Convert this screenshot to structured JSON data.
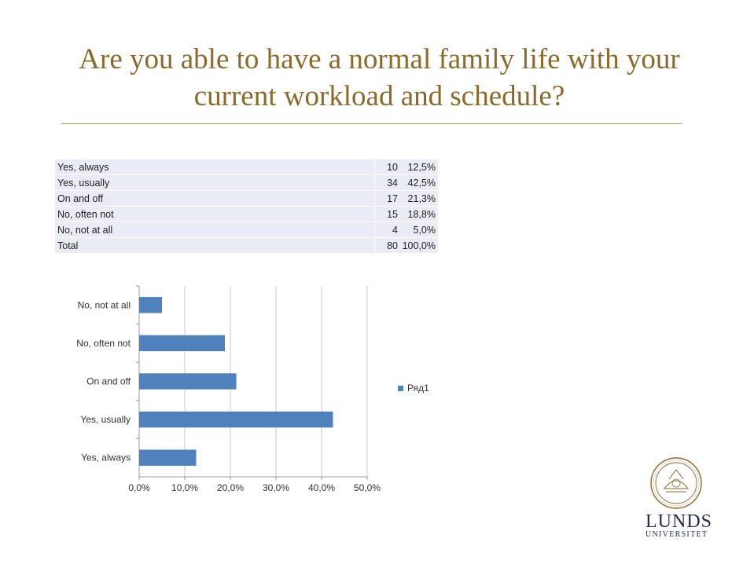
{
  "title": "Are you able to have a normal family life with your current workload and schedule?",
  "table": {
    "rows": [
      {
        "label": "Yes, always",
        "count": "10",
        "percent": "12,5%"
      },
      {
        "label": "Yes, usually",
        "count": "34",
        "percent": "42,5%"
      },
      {
        "label": "On and off",
        "count": "17",
        "percent": "21,3%"
      },
      {
        "label": "No, often not",
        "count": "15",
        "percent": "18,8%"
      },
      {
        "label": "No, not at all",
        "count": "4",
        "percent": "5,0%"
      },
      {
        "label": "Total",
        "count": "80",
        "percent": "100,0%"
      }
    ]
  },
  "chart_data": {
    "type": "bar",
    "orientation": "horizontal",
    "categories": [
      "No, not at all",
      "No, often not",
      "On and off",
      "Yes, usually",
      "Yes, always"
    ],
    "series": [
      {
        "name": "Ряд1",
        "values": [
          5.0,
          18.8,
          21.3,
          42.5,
          12.5
        ]
      }
    ],
    "xlim": [
      0,
      50
    ],
    "xticks": [
      "0,0%",
      "10,0%",
      "20,0%",
      "30,0%",
      "40,0%",
      "50,0%"
    ],
    "grid": "vertical",
    "legend": "right",
    "bar_color": "#4f81bd"
  },
  "logo": {
    "word": "LUNDS",
    "sub": "UNIVERSITET"
  }
}
